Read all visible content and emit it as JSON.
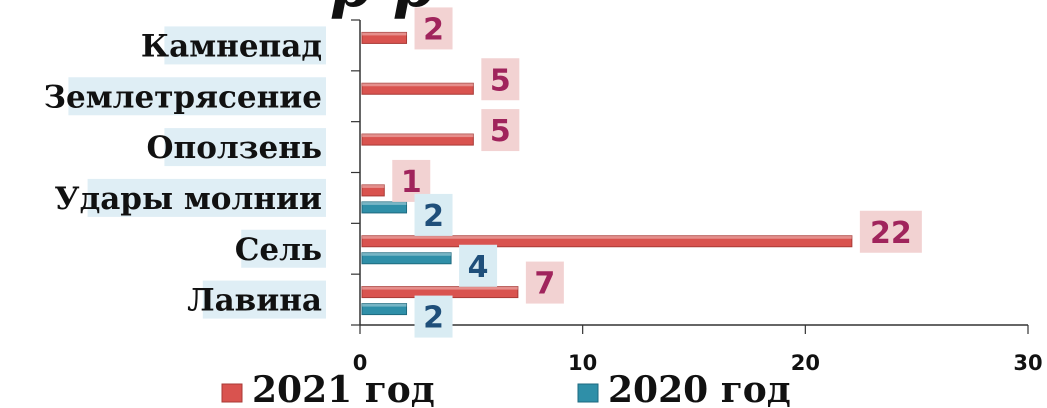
{
  "chart_data": {
    "type": "bar",
    "orientation": "horizontal",
    "categories": [
      "Камнепад",
      "Землетрясение",
      "Оползень",
      "Удары молнии",
      "Сель",
      "Лавина"
    ],
    "series": [
      {
        "name": "2021 год",
        "color": "#d9534f",
        "values": [
          2,
          5,
          5,
          1,
          22,
          7
        ]
      },
      {
        "name": "2020 год",
        "color": "#2f8fa8",
        "values": [
          null,
          null,
          null,
          2,
          4,
          2
        ]
      }
    ],
    "xlim": [
      0,
      30
    ],
    "xticks": [
      "0",
      "10",
      "20",
      "30"
    ],
    "grid": false,
    "legend_position": "bottom"
  }
}
